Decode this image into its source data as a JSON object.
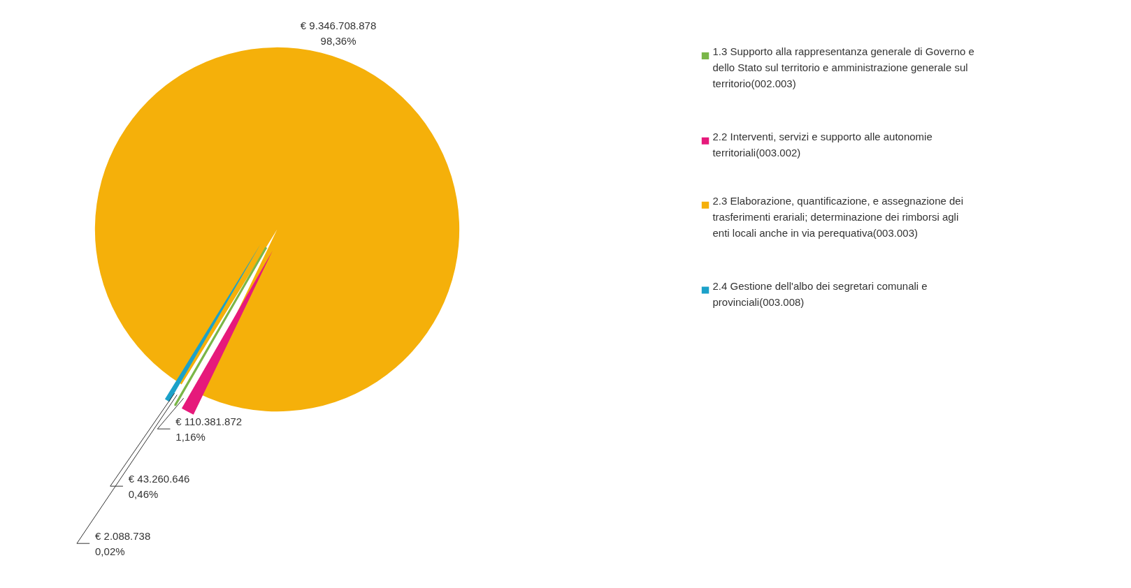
{
  "chart_data": {
    "type": "pie",
    "categories": [
      "1.3 Supporto alla rappresentanza generale di Governo e dello Stato sul territorio e amministrazione generale sul territorio(002.003)",
      "2.2 Interventi, servizi e supporto alle autonomie territoriali(003.002)",
      "2.3 Elaborazione, quantificazione, e assegnazione dei trasferimenti erariali; determinazione dei rimborsi agli enti locali anche in via perequativa(003.003)",
      "2.4 Gestione dell'albo dei segretari comunali e provinciali(003.008)"
    ],
    "values": [
      2088738,
      110381872,
      9346708878,
      43260646
    ],
    "colors": [
      "#7ab648",
      "#e6197b",
      "#f5b00a",
      "#1ba1c9"
    ],
    "value_labels": [
      "€ 2.088.738\n0,02%",
      "€ 110.381.872\n1,16%",
      "€ 9.346.708.878\n98,36%",
      "€ 43.260.646\n0,46%"
    ],
    "legend": "right"
  }
}
